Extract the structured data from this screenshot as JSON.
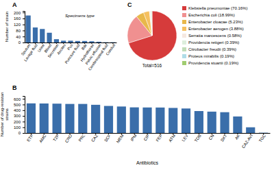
{
  "chart_data": [
    {
      "type": "bar",
      "title": "A",
      "categories": [
        "Sputum",
        "Lavage fluid",
        "Urine",
        "Blood",
        "Secretion",
        "Ascites",
        "Pus",
        "Puncture fluid",
        "Bile",
        "Hydrothorax",
        "Pelvic effusion",
        "Cerebrospinal fluid",
        "Conduit"
      ],
      "values": [
        180,
        100,
        90,
        65,
        22,
        12,
        12,
        10,
        10,
        8,
        5,
        2,
        2
      ],
      "color": "#3a6eaa",
      "ylabel": "Number of strain",
      "annotation": "Specimens type",
      "ylim": [
        0,
        210
      ],
      "yticks": [
        0,
        40,
        80,
        120,
        160,
        200
      ],
      "grid": false
    },
    {
      "type": "bar",
      "title": "B",
      "categories": [
        "ETP",
        "AMC",
        "T2P",
        "CRO",
        "PRL",
        "CAZ",
        "SCF",
        "MEM",
        "IPM",
        "CIP",
        "FEP",
        "ATM",
        "LEV",
        "TOB",
        "CN",
        "SXT",
        "AK",
        "CAZ-AVI",
        "TGC"
      ],
      "values": [
        520,
        518,
        515,
        510,
        510,
        495,
        475,
        465,
        450,
        448,
        447,
        440,
        430,
        385,
        375,
        365,
        290,
        100,
        5
      ],
      "color": "#3a6eaa",
      "ylabel": "Number of drug-resistan\nstrains",
      "xlabel": "Antibiotics",
      "ylim": [
        0,
        650
      ],
      "yticks": [
        0,
        100,
        200,
        300,
        400,
        500,
        600
      ],
      "grid": false
    },
    {
      "type": "pie",
      "title": "C",
      "categories": [
        "Klebsiella pneumoniae (70.16%)",
        "Escherichia coli (18.99%)",
        "Enterobacter cloacae (5.23%)",
        "Enterobacter aerogen (3.88%)",
        "Serratia marcescens (0.58%)",
        "Providencia rettgeri (0.39%)",
        "Citrobacter freudii (0.39%)",
        "Proteus mirabilis (0.19%)",
        "Providencia stuartii (0.19%)"
      ],
      "values": [
        70.16,
        18.99,
        5.23,
        3.88,
        0.58,
        0.39,
        0.39,
        0.19,
        0.19
      ],
      "colors": [
        "#d63b3b",
        "#f09090",
        "#e8b84b",
        "#f5c060",
        "#f5e8e0",
        "#ddeedd",
        "#c0ddb8",
        "#b0dde8",
        "#a0cc70"
      ],
      "annotation": "Total=516",
      "legend": "right"
    }
  ]
}
